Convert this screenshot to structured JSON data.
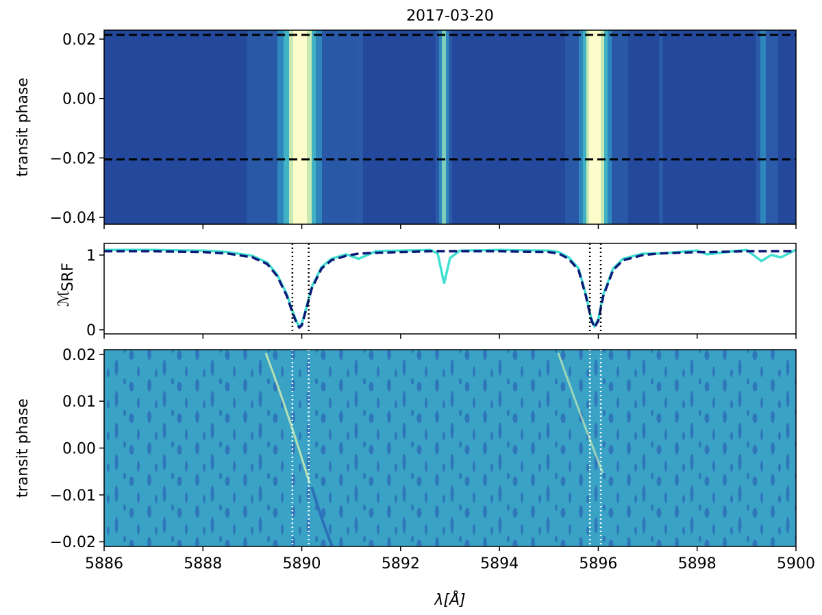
{
  "chart_data": [
    {
      "type": "heatmap",
      "title": "2017-03-20",
      "ylabel": "transit phase",
      "xlim": [
        5886,
        5900
      ],
      "xticks": [
        5886,
        5888,
        5890,
        5892,
        5894,
        5896,
        5898,
        5900
      ],
      "ylim": [
        -0.0423,
        0.023
      ],
      "yticks": [
        {
          "value": 0.02,
          "label": "0.02"
        },
        {
          "value": 0,
          "label": "0.00"
        },
        {
          "value": -0.02,
          "label": "−0.02"
        },
        {
          "value": -0.04,
          "label": "−0.04"
        }
      ],
      "hlines": [
        0.0214,
        -0.0205
      ],
      "hline_color": "#000000"
    },
    {
      "type": "line",
      "ylabel": "ℳ",
      "ylabel_sub": "SRF",
      "xlim": [
        5886,
        5900
      ],
      "xticks": [
        5886,
        5888,
        5890,
        5892,
        5894,
        5896,
        5898,
        5900
      ],
      "ylim": [
        -0.055,
        1.156
      ],
      "yticks": [
        0,
        1
      ],
      "vlines": [
        5889.81,
        5890.14,
        5895.83,
        5896.05
      ],
      "vline_color": "#000000",
      "x": [
        5886,
        5887,
        5888,
        5888.5,
        5889.0,
        5889.3,
        5889.5,
        5889.7,
        5889.8,
        5889.9,
        5889.95,
        5890.0,
        5890.1,
        5890.2,
        5890.4,
        5890.6,
        5890.9,
        5891.15,
        5891.5,
        5892,
        5892.6,
        5892.75,
        5892.88,
        5893.0,
        5893.2,
        5894,
        5895,
        5895.2,
        5895.4,
        5895.6,
        5895.75,
        5895.85,
        5895.92,
        5896.0,
        5896.1,
        5896.3,
        5896.5,
        5896.9,
        5897.2,
        5898,
        5898.2,
        5899,
        5899.3,
        5899.5,
        5899.7,
        5900
      ],
      "series": [
        {
          "color": "#40e0d0",
          "linestyle": "solid",
          "values": [
            1.07,
            1.07,
            1.06,
            1.04,
            0.99,
            0.9,
            0.74,
            0.47,
            0.27,
            0.1,
            0.05,
            0.08,
            0.32,
            0.57,
            0.84,
            0.95,
            1.01,
            0.95,
            1.05,
            1.06,
            1.07,
            1.02,
            0.62,
            0.96,
            1.06,
            1.07,
            1.06,
            1.04,
            0.97,
            0.82,
            0.47,
            0.17,
            0.05,
            0.14,
            0.47,
            0.82,
            0.95,
            1.02,
            1.02,
            1.06,
            1.01,
            1.07,
            0.92,
            1.0,
            0.97,
            1.07
          ]
        },
        {
          "color": "#0b1a78",
          "linestyle": "dashed",
          "values": [
            1.05,
            1.05,
            1.04,
            1.02,
            0.97,
            0.88,
            0.72,
            0.45,
            0.25,
            0.08,
            0.03,
            0.06,
            0.3,
            0.55,
            0.82,
            0.93,
            0.99,
            1.02,
            1.03,
            1.04,
            1.05,
            1.05,
            1.05,
            1.05,
            1.05,
            1.05,
            1.04,
            1.02,
            0.95,
            0.8,
            0.45,
            0.15,
            0.03,
            0.12,
            0.45,
            0.8,
            0.93,
            1.0,
            1.02,
            1.04,
            1.04,
            1.05,
            1.05,
            1.05,
            1.05,
            1.05
          ]
        }
      ]
    },
    {
      "type": "heatmap",
      "ylabel": "transit phase",
      "xlabel": "λ[Å]",
      "xlim": [
        5886,
        5900
      ],
      "xticks": [
        5886,
        5888,
        5890,
        5892,
        5894,
        5896,
        5898,
        5900
      ],
      "ylim": [
        -0.021,
        0.021
      ],
      "yticks": [
        {
          "value": 0.02,
          "label": "0.02"
        },
        {
          "value": 0.01,
          "label": "0.01"
        },
        {
          "value": 0,
          "label": "0.00"
        },
        {
          "value": -0.01,
          "label": "−0.01"
        },
        {
          "value": -0.02,
          "label": "−0.02"
        }
      ],
      "vlines": [
        5889.81,
        5890.14,
        5895.83,
        5896.05
      ],
      "vline_color": "#ffffff"
    }
  ]
}
